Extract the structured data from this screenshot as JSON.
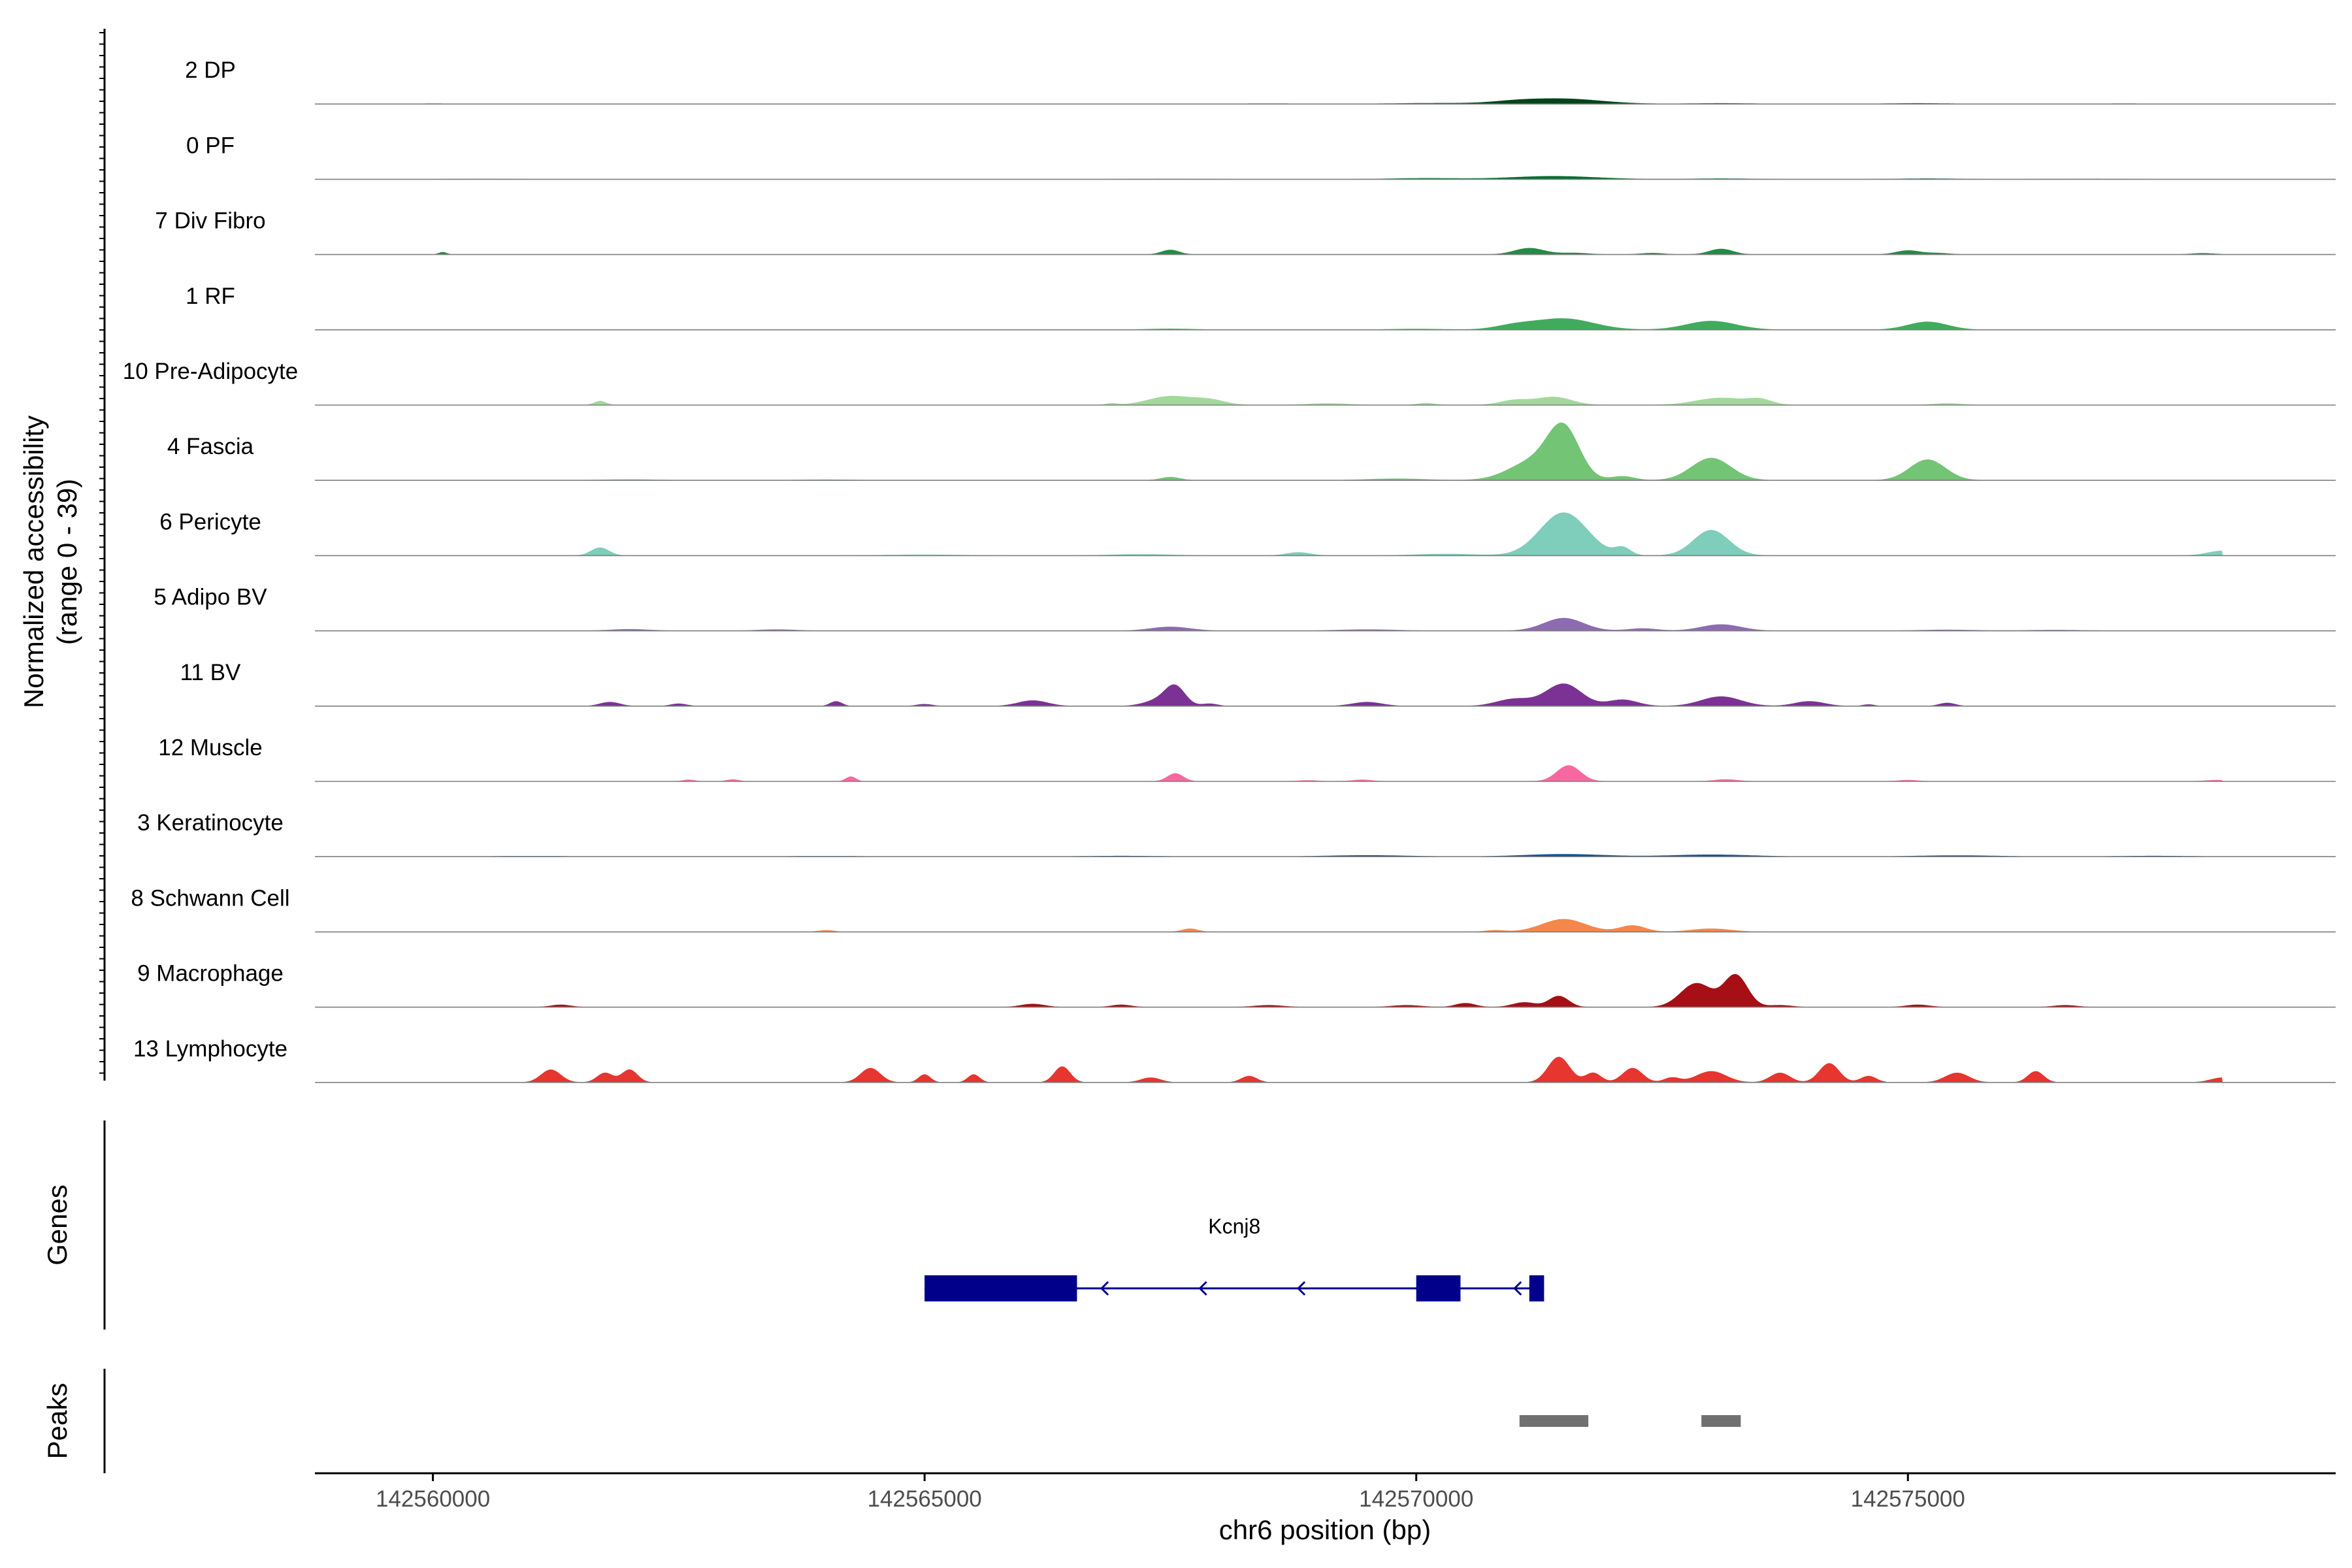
{
  "chart_data": {
    "type": "area",
    "title": "",
    "ylabel_line1": "Normalized accessibility",
    "ylabel_line2": "(range 0 - 39)",
    "ylim": [
      0,
      39
    ],
    "xlabel": "chr6 position (bp)",
    "xlim": [
      142558800,
      142579350
    ],
    "xticks": [
      142560000,
      142565000,
      142570000,
      142575000
    ],
    "xtick_labels": [
      "142560000",
      "142565000",
      "142570000",
      "142575000"
    ],
    "baseline_color": "#7f7f7f",
    "tracks": [
      {
        "name": "2 DP",
        "color": "#00441B",
        "peaks": [
          [
            142571500,
            3.2,
            380
          ],
          [
            142571000,
            1.2,
            250
          ],
          [
            142570200,
            0.5,
            400
          ],
          [
            142573100,
            0.4,
            300
          ],
          [
            142575100,
            0.4,
            300
          ],
          [
            142560000,
            0.2,
            200
          ],
          [
            142568500,
            0.2,
            500
          ],
          [
            142577200,
            0.2,
            300
          ]
        ]
      },
      {
        "name": "0 PF",
        "color": "#006D2C",
        "peaks": [
          [
            142571400,
            1.9,
            420
          ],
          [
            142570100,
            0.6,
            350
          ],
          [
            142573100,
            0.4,
            300
          ],
          [
            142575200,
            0.4,
            300
          ],
          [
            142560500,
            0.2,
            300
          ],
          [
            142567500,
            0.2,
            400
          ],
          [
            142576800,
            0.2,
            400
          ]
        ]
      },
      {
        "name": "7 Div Fibro",
        "color": "#238B45",
        "peaks": [
          [
            142571150,
            4.0,
            150
          ],
          [
            142573100,
            3.5,
            120
          ],
          [
            142567500,
            2.9,
            90
          ],
          [
            142575000,
            2.5,
            120
          ],
          [
            142560100,
            1.5,
            40
          ],
          [
            142571600,
            1.0,
            150
          ],
          [
            142572400,
            0.9,
            120
          ],
          [
            142575300,
            0.9,
            120
          ],
          [
            142578000,
            0.8,
            120
          ]
        ]
      },
      {
        "name": "1 RF",
        "color": "#41AB5D",
        "peaks": [
          [
            142571500,
            7.0,
            300
          ],
          [
            142573000,
            5.5,
            250
          ],
          [
            142575200,
            5.0,
            200
          ],
          [
            142571000,
            2.5,
            200
          ],
          [
            142567500,
            0.6,
            250
          ],
          [
            142570000,
            0.5,
            300
          ]
        ]
      },
      {
        "name": "10 Pre-Adipocyte",
        "color": "#A1D99B",
        "peaks": [
          [
            142567500,
            5.5,
            220
          ],
          [
            142567900,
            3.0,
            160
          ],
          [
            142571400,
            5.0,
            180
          ],
          [
            142571000,
            3.0,
            150
          ],
          [
            142573100,
            4.5,
            250
          ],
          [
            142573500,
            3.0,
            120
          ],
          [
            142561700,
            2.5,
            60
          ],
          [
            142566900,
            1.0,
            60
          ],
          [
            142569100,
            1.0,
            200
          ],
          [
            142570100,
            1.2,
            90
          ],
          [
            142575400,
            1.0,
            150
          ]
        ]
      },
      {
        "name": "4 Fascia",
        "color": "#74C476",
        "peaks": [
          [
            142571500,
            30.0,
            160
          ],
          [
            142571200,
            12.0,
            250
          ],
          [
            142573000,
            14.0,
            200
          ],
          [
            142575200,
            13.0,
            180
          ],
          [
            142567500,
            2.0,
            100
          ],
          [
            142572100,
            2.5,
            120
          ],
          [
            142569800,
            1.0,
            300
          ],
          [
            142562000,
            0.5,
            300
          ],
          [
            142564000,
            0.4,
            300
          ]
        ]
      },
      {
        "name": "6 Pericyte",
        "color": "#7FCDBB",
        "peaks": [
          [
            142571500,
            27.0,
            240
          ],
          [
            142573000,
            16.0,
            180
          ],
          [
            142572100,
            4.5,
            80
          ],
          [
            142561700,
            5.0,
            90
          ],
          [
            142568800,
            2.0,
            120
          ],
          [
            142578200,
            3.0,
            150
          ],
          [
            142570300,
            1.0,
            300
          ],
          [
            142565000,
            0.5,
            400
          ],
          [
            142567200,
            0.8,
            300
          ]
        ]
      },
      {
        "name": "5 Adipo BV",
        "color": "#8C6BB1",
        "peaks": [
          [
            142571500,
            8.0,
            200
          ],
          [
            142573100,
            4.0,
            200
          ],
          [
            142567500,
            2.5,
            200
          ],
          [
            142562000,
            1.0,
            200
          ],
          [
            142563500,
            0.8,
            200
          ],
          [
            142569500,
            0.8,
            300
          ],
          [
            142575400,
            0.6,
            300
          ],
          [
            142576500,
            0.5,
            300
          ],
          [
            142572300,
            1.5,
            150
          ]
        ]
      },
      {
        "name": "11 BV",
        "color": "#7B3294",
        "peaks": [
          [
            142571500,
            14.0,
            180
          ],
          [
            142571000,
            4.5,
            180
          ],
          [
            142572100,
            4.0,
            150
          ],
          [
            142567550,
            11.0,
            100
          ],
          [
            142567400,
            4.0,
            150
          ],
          [
            142566100,
            3.5,
            150
          ],
          [
            142564100,
            3.0,
            60
          ],
          [
            142561800,
            2.5,
            100
          ],
          [
            142569500,
            2.5,
            150
          ],
          [
            142573100,
            6.0,
            200
          ],
          [
            142574000,
            3.0,
            150
          ],
          [
            142562500,
            1.5,
            80
          ],
          [
            142565000,
            1.2,
            80
          ],
          [
            142567900,
            1.5,
            80
          ],
          [
            142574600,
            1.0,
            60
          ],
          [
            142575400,
            2.0,
            80
          ]
        ]
      },
      {
        "name": "12 Muscle",
        "color": "#F768A1",
        "peaks": [
          [
            142571550,
            10.0,
            120
          ],
          [
            142567550,
            5.0,
            80
          ],
          [
            142564250,
            3.0,
            50
          ],
          [
            142563050,
            1.2,
            60
          ],
          [
            142562600,
            1.0,
            60
          ],
          [
            142573150,
            1.2,
            120
          ],
          [
            142569450,
            1.0,
            100
          ],
          [
            142575000,
            0.8,
            100
          ],
          [
            142578150,
            0.8,
            120
          ],
          [
            142568900,
            0.6,
            100
          ]
        ]
      },
      {
        "name": "3 Keratinocyte",
        "color": "#08519C",
        "peaks": [
          [
            142571500,
            1.5,
            400
          ],
          [
            142573000,
            1.2,
            400
          ],
          [
            142569500,
            0.8,
            400
          ],
          [
            142575500,
            0.7,
            400
          ],
          [
            142561000,
            0.3,
            400
          ],
          [
            142564000,
            0.3,
            400
          ],
          [
            142567000,
            0.4,
            400
          ],
          [
            142577500,
            0.4,
            400
          ]
        ]
      },
      {
        "name": "8 Schwann Cell",
        "color": "#F4874B",
        "peaks": [
          [
            142571500,
            8.0,
            220
          ],
          [
            142572200,
            4.0,
            130
          ],
          [
            142567700,
            2.0,
            80
          ],
          [
            142573000,
            2.0,
            200
          ],
          [
            142564000,
            1.0,
            80
          ],
          [
            142570800,
            1.0,
            100
          ]
        ]
      },
      {
        "name": "9 Macrophage",
        "color": "#A50F15",
        "peaks": [
          [
            142573250,
            20.0,
            120
          ],
          [
            142572850,
            15.0,
            160
          ],
          [
            142571450,
            7.0,
            100
          ],
          [
            142571100,
            3.0,
            120
          ],
          [
            142570500,
            2.5,
            100
          ],
          [
            142566100,
            2.0,
            120
          ],
          [
            142561300,
            1.5,
            100
          ],
          [
            142567000,
            1.5,
            100
          ],
          [
            142568500,
            1.2,
            150
          ],
          [
            142569900,
            1.2,
            150
          ],
          [
            142573700,
            1.2,
            120
          ],
          [
            142575100,
            1.5,
            120
          ],
          [
            142576600,
            1.2,
            120
          ]
        ]
      },
      {
        "name": "13 Lymphocyte",
        "color": "#E7352F",
        "peaks": [
          [
            142571450,
            16.0,
            110
          ],
          [
            142571800,
            6.0,
            80
          ],
          [
            142572200,
            9.0,
            100
          ],
          [
            142574200,
            12.0,
            100
          ],
          [
            142561200,
            8.0,
            100
          ],
          [
            142562000,
            8.0,
            80
          ],
          [
            142561750,
            6.0,
            80
          ],
          [
            142564450,
            9.0,
            100
          ],
          [
            142565000,
            5.0,
            60
          ],
          [
            142565500,
            5.0,
            60
          ],
          [
            142566400,
            10.0,
            80
          ],
          [
            142567300,
            3.0,
            100
          ],
          [
            142573000,
            7.0,
            150
          ],
          [
            142573700,
            6.0,
            100
          ],
          [
            142575500,
            6.0,
            120
          ],
          [
            142576300,
            7.0,
            80
          ],
          [
            142578200,
            3.0,
            120
          ],
          [
            142568300,
            4.0,
            80
          ],
          [
            142572600,
            3.0,
            80
          ],
          [
            142574600,
            4.0,
            80
          ]
        ]
      }
    ]
  },
  "genes_panel": {
    "label": "Genes",
    "gene_name": "Kcnj8",
    "strand": "-",
    "color": "#00008B",
    "intron": [
      142565000,
      142571300
    ],
    "exons": [
      [
        142565000,
        142566550
      ],
      [
        142570000,
        142570450
      ],
      [
        142571150,
        142571300
      ]
    ]
  },
  "peaks_panel": {
    "label": "Peaks",
    "color": "#707070",
    "regions": [
      [
        142571050,
        142571750
      ],
      [
        142572900,
        142573300
      ]
    ]
  }
}
